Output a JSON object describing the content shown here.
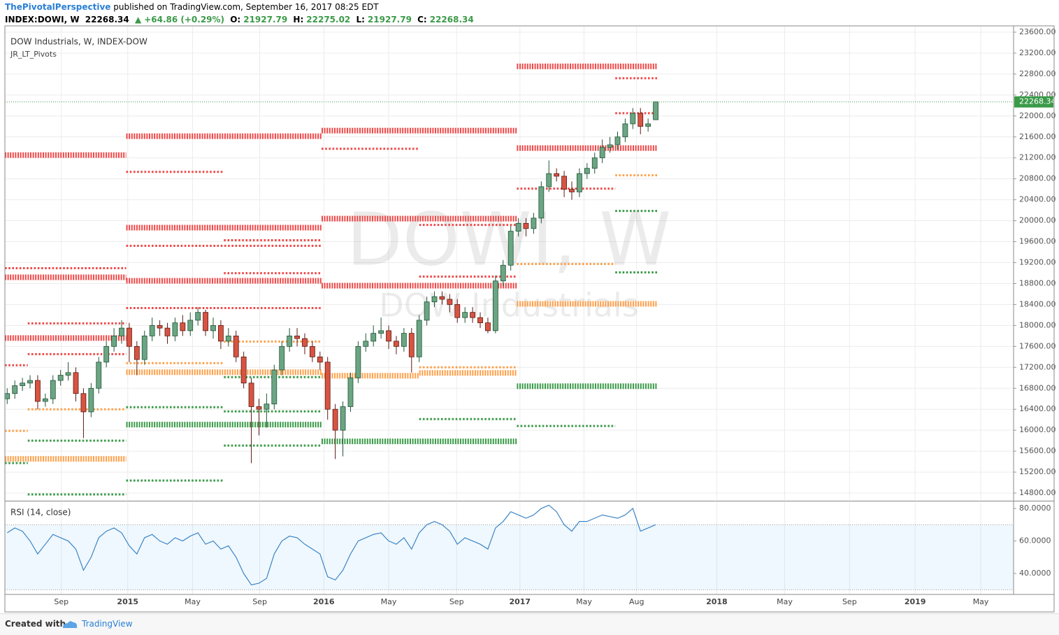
{
  "header": {
    "author": "ThePivotalPerspective",
    "published": "published on TradingView.com, September 16, 2017 08:25 EDT",
    "symbol": "INDEX:DOWI, W",
    "arrow": "▲",
    "change": "+64.86 (+0.29%)",
    "o_label": "O:",
    "h_label": "H:",
    "l_label": "L:",
    "c_label": "C:"
  },
  "footer": {
    "created": "Created with",
    "brand": "TradingView"
  },
  "chart_data": [
    {
      "type": "candlestick",
      "title": "DOW Industrials, W, INDEX-DOW",
      "indicator": "JR_LT_Pivots",
      "watermark": "DOWI, W",
      "watermark_sub": "DOW Industrials",
      "up_color": "#6ba583",
      "down_color": "#d75442",
      "grid": true,
      "last_price_line": true,
      "open": [
        16600,
        16700,
        16850,
        16900,
        16950,
        16550,
        16600,
        16950,
        17050,
        17100,
        16700,
        16350,
        16800,
        17300,
        17600,
        17800,
        17950,
        17600,
        17350,
        17800,
        18000,
        17950,
        17800,
        18050,
        17900,
        18100,
        18250,
        17900,
        18000,
        17700,
        17800,
        17400,
        16900,
        16450,
        16400,
        16500,
        17150,
        17600,
        17800,
        17750,
        17600,
        17400,
        17300,
        16400,
        16000,
        16450,
        17000,
        17600,
        17700,
        17850,
        17900,
        17700,
        17600,
        17850,
        17400,
        18100,
        18450,
        18550,
        18500,
        18400,
        18150,
        18250,
        18150,
        18050,
        17900,
        18850,
        19150,
        19800,
        19950,
        19850,
        20050,
        20650,
        20900,
        20850,
        20600,
        20550,
        20900,
        21000,
        21200,
        21400,
        21450,
        21600,
        21850,
        22050,
        21800,
        21927.79
      ],
      "high": [
        16800,
        16950,
        17000,
        17050,
        17050,
        16700,
        17050,
        17150,
        17300,
        17200,
        16800,
        16900,
        17400,
        17700,
        17950,
        18100,
        18050,
        17700,
        17900,
        18150,
        18100,
        18050,
        18150,
        18200,
        18250,
        18350,
        18300,
        18150,
        18100,
        17950,
        17900,
        17500,
        17000,
        16600,
        16700,
        17250,
        17700,
        17950,
        17950,
        17850,
        17700,
        17500,
        17400,
        16500,
        16550,
        17100,
        17700,
        17850,
        18000,
        18150,
        18000,
        17800,
        17950,
        17950,
        18200,
        18550,
        18650,
        18650,
        18600,
        18500,
        18350,
        18350,
        18250,
        18150,
        18950,
        19250,
        19900,
        20050,
        20050,
        20150,
        20750,
        21150,
        21000,
        20950,
        20750,
        21000,
        21100,
        21300,
        21550,
        21600,
        21700,
        21950,
        22150,
        22150,
        21950,
        22275.02
      ],
      "low": [
        16500,
        16600,
        16750,
        16800,
        16400,
        16450,
        16500,
        16850,
        16950,
        16550,
        15850,
        16250,
        16700,
        17200,
        17500,
        17650,
        17300,
        17050,
        17250,
        17700,
        17800,
        17650,
        17700,
        17800,
        17800,
        18000,
        17800,
        17750,
        17550,
        17600,
        17300,
        16800,
        15370,
        15900,
        16050,
        16400,
        17050,
        17500,
        17600,
        17450,
        17300,
        17150,
        16200,
        15450,
        15500,
        16350,
        16900,
        17500,
        17600,
        17750,
        17550,
        17450,
        17500,
        17100,
        17300,
        18000,
        18350,
        18400,
        18250,
        18050,
        18050,
        18050,
        17950,
        17850,
        17850,
        18750,
        19050,
        19700,
        19700,
        19750,
        19950,
        20550,
        20750,
        20450,
        20400,
        20450,
        20800,
        20900,
        21100,
        21300,
        21350,
        21500,
        21750,
        21650,
        21700,
        21927.79
      ],
      "close": [
        16700,
        16850,
        16900,
        16950,
        16550,
        16600,
        16950,
        17050,
        17100,
        16700,
        16350,
        16800,
        17300,
        17600,
        17800,
        17950,
        17600,
        17350,
        17800,
        18000,
        17950,
        17800,
        18050,
        17900,
        18100,
        18250,
        17900,
        18000,
        17700,
        17800,
        17400,
        16900,
        16450,
        16400,
        16500,
        17150,
        17600,
        17800,
        17750,
        17600,
        17400,
        17300,
        16400,
        16000,
        16450,
        17000,
        17600,
        17700,
        17850,
        17900,
        17700,
        17600,
        17850,
        17400,
        18100,
        18450,
        18550,
        18500,
        18400,
        18150,
        18250,
        18150,
        18050,
        17900,
        18850,
        19150,
        19800,
        19950,
        19850,
        20050,
        20650,
        20900,
        20850,
        20600,
        20550,
        20900,
        21000,
        21200,
        21400,
        21450,
        21600,
        21850,
        22050,
        21800,
        21850,
        22268.34
      ],
      "pivots": [
        {
          "start": -0.3,
          "end": 15.6,
          "value": 21253,
          "color": "#f04848",
          "weight": "thick"
        },
        {
          "start": 15.6,
          "end": 41.2,
          "value": 21613,
          "color": "#f04848",
          "weight": "thick"
        },
        {
          "start": 41.2,
          "end": 66.8,
          "value": 21720,
          "color": "#f04848",
          "weight": "thick"
        },
        {
          "start": 66.8,
          "end": 85.2,
          "value": 22947,
          "color": "#f04848",
          "weight": "thick"
        },
        {
          "start": 15.6,
          "end": 41.2,
          "value": 19867,
          "color": "#f04848",
          "weight": "thick"
        },
        {
          "start": 41.2,
          "end": 66.8,
          "value": 20040,
          "color": "#f04848",
          "weight": "thick"
        },
        {
          "start": 66.8,
          "end": 85.2,
          "value": 21387,
          "color": "#f04848",
          "weight": "thick"
        },
        {
          "start": -0.3,
          "end": 15.6,
          "value": 18920,
          "color": "#f04848",
          "weight": "thick"
        },
        {
          "start": 15.6,
          "end": 41.2,
          "value": 18853,
          "color": "#f04848",
          "weight": "thick"
        },
        {
          "start": 41.2,
          "end": 66.8,
          "value": 18760,
          "color": "#f04848",
          "weight": "thick"
        },
        {
          "start": -0.3,
          "end": 15.6,
          "value": 17760,
          "color": "#f04848",
          "weight": "thick"
        },
        {
          "start": -0.3,
          "end": 15.6,
          "value": 19093,
          "color": "#f04848",
          "weight": "thin"
        },
        {
          "start": 15.6,
          "end": 28.4,
          "value": 20933,
          "color": "#f04848",
          "weight": "thin"
        },
        {
          "start": 41.2,
          "end": 54,
          "value": 21373,
          "color": "#f04848",
          "weight": "thin"
        },
        {
          "start": 79.7,
          "end": 85.2,
          "value": 22720,
          "color": "#f04848",
          "weight": "thin"
        },
        {
          "start": 15.6,
          "end": 41.2,
          "value": 19520,
          "color": "#f04848",
          "weight": "thin"
        },
        {
          "start": 54,
          "end": 66.8,
          "value": 19920,
          "color": "#f04848",
          "weight": "thin"
        },
        {
          "start": 28.4,
          "end": 41.2,
          "value": 19627,
          "color": "#f04848",
          "weight": "thin"
        },
        {
          "start": 79.7,
          "end": 85.2,
          "value": 22053,
          "color": "#f04848",
          "weight": "thin"
        },
        {
          "start": 28.4,
          "end": 41.2,
          "value": 18999,
          "color": "#f04848",
          "weight": "thin"
        },
        {
          "start": 54,
          "end": 66.8,
          "value": 18933,
          "color": "#f04848",
          "weight": "thin"
        },
        {
          "start": 66.8,
          "end": 79.7,
          "value": 20613,
          "color": "#f04848",
          "weight": "thin"
        },
        {
          "start": 2.7,
          "end": 15.6,
          "value": 18040,
          "color": "#f04848",
          "weight": "thin"
        },
        {
          "start": 15.6,
          "end": 41.2,
          "value": 18333,
          "color": "#f04848",
          "weight": "thin"
        },
        {
          "start": -0.3,
          "end": 2.7,
          "value": 17240,
          "color": "#f04848",
          "weight": "thin"
        },
        {
          "start": 2.7,
          "end": 15.6,
          "value": 17453,
          "color": "#f04848",
          "weight": "thin"
        },
        {
          "start": -0.3,
          "end": 15.6,
          "value": 15453,
          "color": "#ffa04a",
          "weight": "thick"
        },
        {
          "start": 15.6,
          "end": 41.2,
          "value": 17107,
          "color": "#ffa04a",
          "weight": "thick"
        },
        {
          "start": 41.2,
          "end": 54,
          "value": 17040,
          "color": "#ffa04a",
          "weight": "thick"
        },
        {
          "start": 54,
          "end": 66.8,
          "value": 17093,
          "color": "#ffa04a",
          "weight": "thick"
        },
        {
          "start": 66.8,
          "end": 85.2,
          "value": 18413,
          "color": "#ffa04a",
          "weight": "thick"
        },
        {
          "start": -0.3,
          "end": 2.7,
          "value": 15987,
          "color": "#ffa04a",
          "weight": "thin"
        },
        {
          "start": 2.7,
          "end": 15.6,
          "value": 16400,
          "color": "#ffa04a",
          "weight": "thin"
        },
        {
          "start": 15.6,
          "end": 28.4,
          "value": 17280,
          "color": "#ffa04a",
          "weight": "thin"
        },
        {
          "start": 28.4,
          "end": 41.2,
          "value": 17693,
          "color": "#ffa04a",
          "weight": "thin"
        },
        {
          "start": 54,
          "end": 66.8,
          "value": 17200,
          "color": "#ffa04a",
          "weight": "thin"
        },
        {
          "start": 66.8,
          "end": 79.7,
          "value": 19173,
          "color": "#ffa04a",
          "weight": "thin"
        },
        {
          "start": 79.7,
          "end": 85.2,
          "value": 20867,
          "color": "#ffa04a",
          "weight": "thin"
        },
        {
          "start": 15.6,
          "end": 41.2,
          "value": 16107,
          "color": "#3a9a48",
          "weight": "thick"
        },
        {
          "start": 41.2,
          "end": 66.8,
          "value": 15787,
          "color": "#3a9a48",
          "weight": "thick"
        },
        {
          "start": 66.8,
          "end": 85.2,
          "value": 16840,
          "color": "#3a9a48",
          "weight": "thick"
        },
        {
          "start": -0.3,
          "end": 2.7,
          "value": 15373,
          "color": "#3a9a48",
          "weight": "thin"
        },
        {
          "start": 2.7,
          "end": 15.6,
          "value": 14773,
          "color": "#3a9a48",
          "weight": "thin"
        },
        {
          "start": 2.7,
          "end": 15.6,
          "value": 15800,
          "color": "#3a9a48",
          "weight": "thin"
        },
        {
          "start": 15.6,
          "end": 28.4,
          "value": 15040,
          "color": "#3a9a48",
          "weight": "thin"
        },
        {
          "start": 15.6,
          "end": 28.4,
          "value": 16440,
          "color": "#3a9a48",
          "weight": "thin"
        },
        {
          "start": 28.4,
          "end": 41.2,
          "value": 15707,
          "color": "#3a9a48",
          "weight": "thin"
        },
        {
          "start": 28.4,
          "end": 41.2,
          "value": 16360,
          "color": "#3a9a48",
          "weight": "thin"
        },
        {
          "start": 28.4,
          "end": 41.2,
          "value": 17013,
          "color": "#3a9a48",
          "weight": "thin"
        },
        {
          "start": 54,
          "end": 66.8,
          "value": 16213,
          "color": "#3a9a48",
          "weight": "thin"
        },
        {
          "start": 66.8,
          "end": 79.7,
          "value": 16080,
          "color": "#3a9a48",
          "weight": "thin"
        },
        {
          "start": 79.7,
          "end": 85.2,
          "value": 20187,
          "color": "#3a9a48",
          "weight": "thin"
        },
        {
          "start": 79.7,
          "end": 85.2,
          "value": 19013,
          "color": "#3a9a48",
          "weight": "thin"
        }
      ],
      "xlim": [
        -0.3,
        131.9
      ],
      "xticks": [
        {
          "value": 7.1,
          "label": "Sep"
        },
        {
          "value": 15.8,
          "label": "2015"
        },
        {
          "value": 24.3,
          "label": "May"
        },
        {
          "value": 33.1,
          "label": "Sep"
        },
        {
          "value": 41.5,
          "label": "2016"
        },
        {
          "value": 50,
          "label": "May"
        },
        {
          "value": 58.9,
          "label": "Sep"
        },
        {
          "value": 67.2,
          "label": "2017"
        },
        {
          "value": 75.6,
          "label": "May"
        },
        {
          "value": 82.5,
          "label": "Aug"
        },
        {
          "value": 93,
          "label": "2018"
        },
        {
          "value": 101.9,
          "label": "May"
        },
        {
          "value": 110.4,
          "label": "Sep"
        },
        {
          "value": 119,
          "label": "2019"
        },
        {
          "value": 127.6,
          "label": "May"
        }
      ],
      "ylim": [
        14667,
        23720
      ],
      "yticks": [
        {
          "value": 14800,
          "label": "14800.00"
        },
        {
          "value": 15200,
          "label": "15200.00"
        },
        {
          "value": 15600,
          "label": "15600.00"
        },
        {
          "value": 16000,
          "label": "16000.00"
        },
        {
          "value": 16400,
          "label": "16400.00"
        },
        {
          "value": 16800,
          "label": "16800.00"
        },
        {
          "value": 17200,
          "label": "17200.00"
        },
        {
          "value": 17600,
          "label": "17600.00"
        },
        {
          "value": 18000,
          "label": "18000.00"
        },
        {
          "value": 18400,
          "label": "18400.00"
        },
        {
          "value": 18800,
          "label": "18800.00"
        },
        {
          "value": 19200,
          "label": "19200.00"
        },
        {
          "value": 19600,
          "label": "19600.00"
        },
        {
          "value": 20000,
          "label": "20000.00"
        },
        {
          "value": 20400,
          "label": "20400.00"
        },
        {
          "value": 20800,
          "label": "20800.00"
        },
        {
          "value": 21200,
          "label": "21200.00"
        },
        {
          "value": 21600,
          "label": "21600.00"
        },
        {
          "value": 22000,
          "label": "22000.00"
        },
        {
          "value": 22400,
          "label": "22400.00"
        },
        {
          "value": 22800,
          "label": "22800.00"
        },
        {
          "value": 23200,
          "label": "23200.00"
        },
        {
          "value": 23600,
          "label": "23600.00"
        }
      ]
    },
    {
      "type": "line",
      "title": "RSI (14, close)",
      "color": "#3d85c6",
      "band": [
        30,
        70
      ],
      "band_color": "#2196f3",
      "values": [
        65,
        68,
        66,
        60,
        52,
        58,
        64,
        62,
        60,
        55,
        42,
        50,
        62,
        66,
        68,
        65,
        57,
        52,
        62,
        64,
        60,
        58,
        62,
        60,
        63,
        65,
        58,
        60,
        55,
        57,
        50,
        40,
        33,
        34,
        37,
        52,
        60,
        63,
        62,
        58,
        55,
        52,
        38,
        36,
        42,
        52,
        60,
        62,
        64,
        65,
        60,
        58,
        62,
        55,
        65,
        70,
        72,
        70,
        66,
        58,
        62,
        60,
        58,
        55,
        68,
        72,
        78,
        76,
        74,
        76,
        80,
        82,
        78,
        70,
        66,
        72,
        72,
        74,
        76,
        75,
        74,
        76,
        80,
        66,
        68,
        70
      ],
      "ylim": [
        27.1,
        83.9
      ],
      "yticks": [
        {
          "value": 40,
          "label": "40.0000"
        },
        {
          "value": 60,
          "label": "60.0000"
        },
        {
          "value": 80,
          "label": "80.0000"
        }
      ]
    }
  ]
}
